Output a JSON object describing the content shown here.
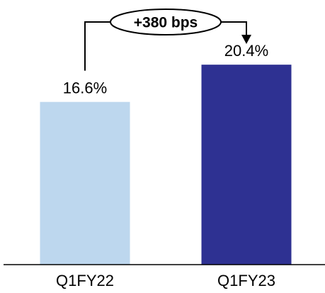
{
  "chart_data": {
    "type": "bar",
    "categories": [
      "Q1FY22",
      "Q1FY23"
    ],
    "values": [
      16.6,
      20.4
    ],
    "data_labels": [
      "16.6%",
      "20.4%"
    ],
    "colors": [
      "#BDD7EE",
      "#2E3192"
    ],
    "title": "",
    "xlabel": "",
    "ylabel": "",
    "ylim": [
      0,
      27
    ],
    "grid": false,
    "legend": "none",
    "annotation": {
      "text": "+380 bps",
      "from_category": "Q1FY22",
      "to_category": "Q1FY23"
    }
  }
}
